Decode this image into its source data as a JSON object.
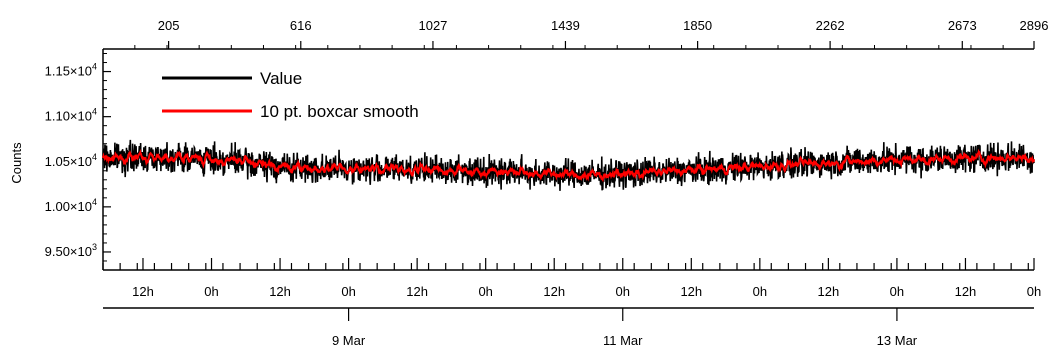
{
  "chart_data": {
    "type": "line",
    "title": "",
    "ylabel": "Counts",
    "xlabel": "",
    "grid": false,
    "legend_position": "top-left",
    "ylim": [
      9300,
      11750
    ],
    "y_ticks": [
      {
        "value": 9500,
        "mantissa": "9.50×10",
        "exp": "3"
      },
      {
        "value": 10000,
        "mantissa": "1.00×10",
        "exp": "4"
      },
      {
        "value": 10500,
        "mantissa": "1.05×10",
        "exp": "4"
      },
      {
        "value": 11000,
        "mantissa": "1.10×10",
        "exp": "4"
      },
      {
        "value": 11500,
        "mantissa": "1.15×10",
        "exp": "4"
      }
    ],
    "top_axis": {
      "range": [
        1,
        2896
      ],
      "ticks": [
        205,
        616,
        1027,
        1439,
        1850,
        2262,
        2673,
        2896
      ]
    },
    "time_axis": {
      "range": [
        "2024-03-07T05:00",
        "2024-03-14T00:00"
      ],
      "hour_ticks": [
        {
          "t": "2024-03-07T12:00",
          "label": "12h"
        },
        {
          "t": "2024-03-08T00:00",
          "label": "0h"
        },
        {
          "t": "2024-03-08T12:00",
          "label": "12h"
        },
        {
          "t": "2024-03-09T00:00",
          "label": "0h"
        },
        {
          "t": "2024-03-09T12:00",
          "label": "12h"
        },
        {
          "t": "2024-03-10T00:00",
          "label": "0h"
        },
        {
          "t": "2024-03-10T12:00",
          "label": "12h"
        },
        {
          "t": "2024-03-11T00:00",
          "label": "0h"
        },
        {
          "t": "2024-03-11T12:00",
          "label": "12h"
        },
        {
          "t": "2024-03-12T00:00",
          "label": "0h"
        },
        {
          "t": "2024-03-12T12:00",
          "label": "12h"
        },
        {
          "t": "2024-03-13T00:00",
          "label": "0h"
        },
        {
          "t": "2024-03-13T12:00",
          "label": "12h"
        },
        {
          "t": "2024-03-14T00:00",
          "label": "0h"
        }
      ],
      "day_ticks": [
        {
          "t": "2024-03-09T00:00",
          "label": "9 Mar"
        },
        {
          "t": "2024-03-11T00:00",
          "label": "11 Mar"
        },
        {
          "t": "2024-03-13T00:00",
          "label": "13 Mar"
        }
      ]
    },
    "series": [
      {
        "name": "Value",
        "color": "#000000",
        "noise_amplitude": 110
      },
      {
        "name": "10 pt. boxcar smooth",
        "color": "#ff0000",
        "points": [
          {
            "x": 1,
            "y": 10540
          },
          {
            "x": 200,
            "y": 10560
          },
          {
            "x": 400,
            "y": 10510
          },
          {
            "x": 600,
            "y": 10430
          },
          {
            "x": 900,
            "y": 10420
          },
          {
            "x": 1200,
            "y": 10400
          },
          {
            "x": 1500,
            "y": 10350
          },
          {
            "x": 1700,
            "y": 10380
          },
          {
            "x": 1900,
            "y": 10420
          },
          {
            "x": 2100,
            "y": 10460
          },
          {
            "x": 2300,
            "y": 10500
          },
          {
            "x": 2500,
            "y": 10520
          },
          {
            "x": 2700,
            "y": 10540
          },
          {
            "x": 2896,
            "y": 10550
          }
        ]
      }
    ]
  }
}
